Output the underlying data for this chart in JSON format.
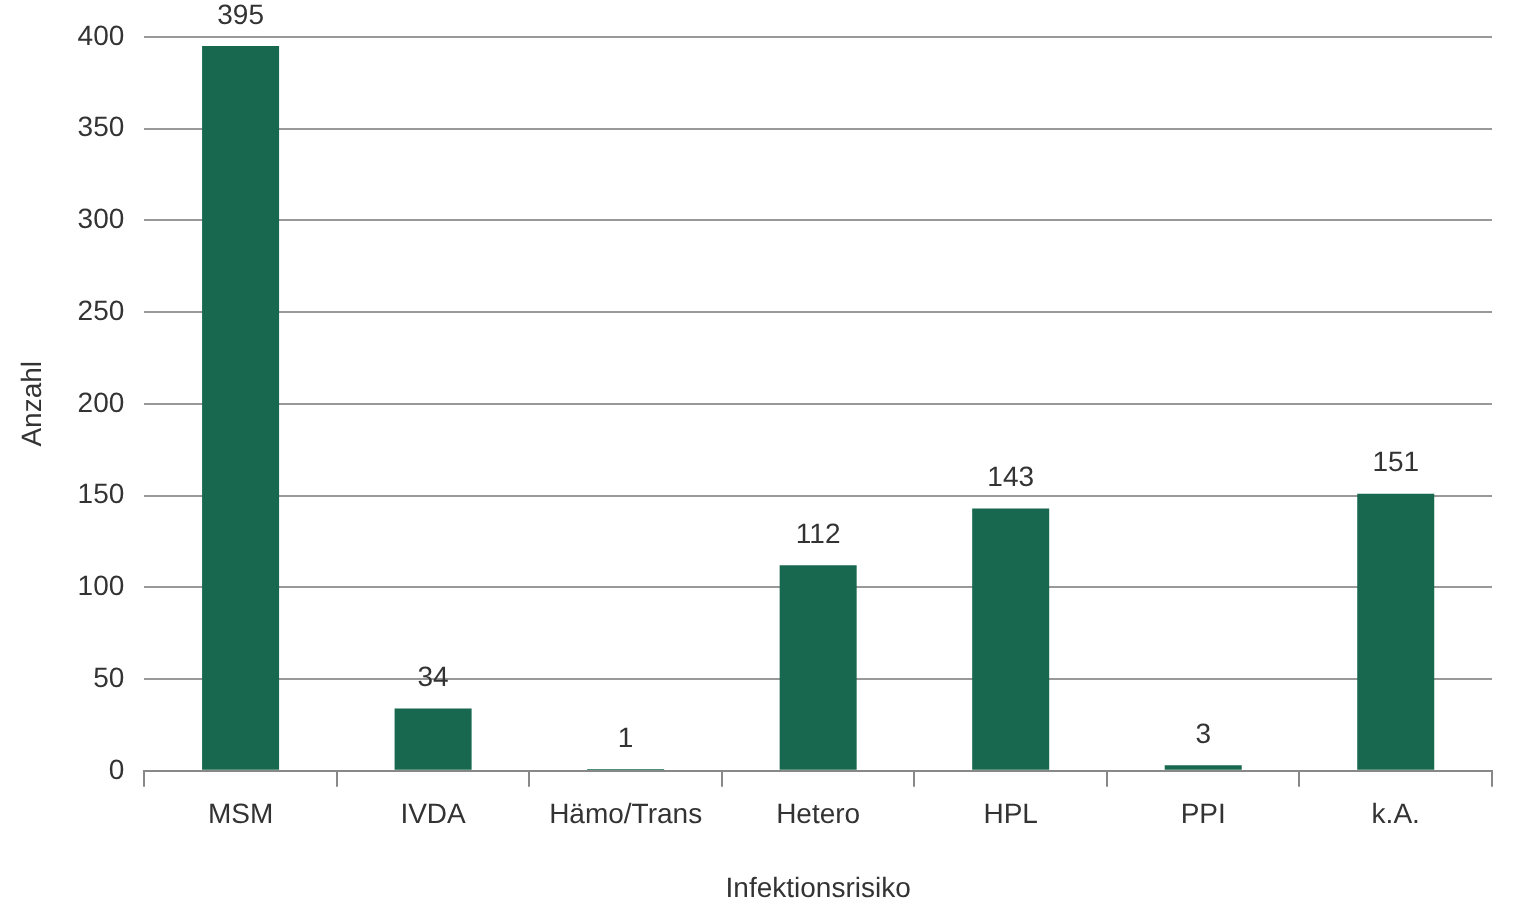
{
  "chart_data": {
    "type": "bar",
    "xlabel": "Infektionsrisiko",
    "ylabel": "Anzahl",
    "categories": [
      "MSM",
      "IVDA",
      "Hämo/Trans",
      "Hetero",
      "HPL",
      "PPI",
      "k.A."
    ],
    "values": [
      395,
      34,
      1,
      112,
      143,
      3,
      151
    ],
    "color": "#17684f",
    "ylim": [
      0,
      400
    ],
    "yticks": [
      0,
      50,
      100,
      150,
      200,
      250,
      300,
      350,
      400
    ],
    "grid": "y",
    "legend": false,
    "data_labels": true
  }
}
